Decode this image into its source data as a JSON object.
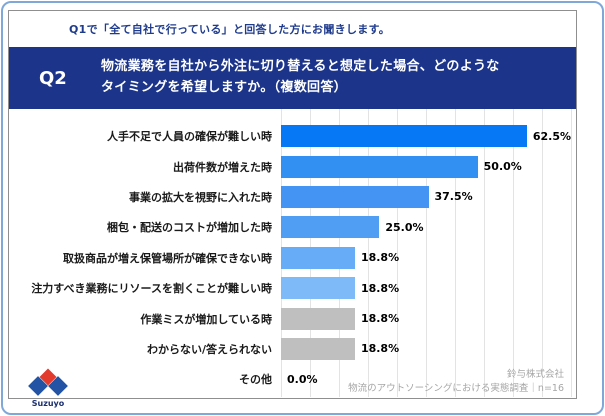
{
  "header": {
    "qualifier": "Q1で「全て自社で行っている」と回答した方にお聞きします。"
  },
  "question": {
    "number": "Q2",
    "line1": "物流業務を自社から外注に切り替えると想定した場合、どのような",
    "line2": "タイミングを希望しますか。（複数回答）"
  },
  "chart_data": {
    "type": "bar",
    "orientation": "horizontal",
    "title": "物流業務を自社から外注に切り替えると想定した場合、どのようなタイミングを希望しますか。（複数回答）",
    "categories": [
      "人手不足で人員の確保が難しい時",
      "出荷件数が増えた時",
      "事業の拡大を視野に入れた時",
      "梱包・配送のコストが増加した時",
      "取扱商品が増え保管場所が確保できない時",
      "注力すべき業務にリソースを割くことが難しい時",
      "作業ミスが増加している時",
      "わからない/答えられない",
      "その他"
    ],
    "values": [
      62.5,
      50.0,
      37.5,
      25.0,
      18.8,
      18.8,
      18.8,
      18.8,
      0.0
    ],
    "value_labels": [
      "62.5%",
      "50.0%",
      "37.5%",
      "25.0%",
      "18.8%",
      "18.8%",
      "18.8%",
      "18.8%",
      "0.0%"
    ],
    "bar_colors": [
      "#0778f5",
      "#3390f3",
      "#4495f3",
      "#509df4",
      "#66acf6",
      "#7fbaf8",
      "#bfbfbf",
      "#bfbfbf",
      "#bfbfbf"
    ],
    "xlim": [
      0,
      75
    ],
    "grid": true,
    "legend": false,
    "n": 16
  },
  "footer": {
    "company": "鈴与株式会社",
    "survey_note": "物流のアウトソーシングにおける実態調査｜n=16"
  },
  "logo": {
    "brand": "Suzuyo"
  },
  "colors": {
    "banner_navy": "#1c358a",
    "qualifier_text": "#1f3b8c",
    "grid_line": "#e3e3e3",
    "footer_gray": "#a6a6a6",
    "frame_blue": "#7fa8d9",
    "box_border": "#8f8f8f",
    "logo_red": "#e33a2e",
    "logo_blue": "#2353a4"
  }
}
